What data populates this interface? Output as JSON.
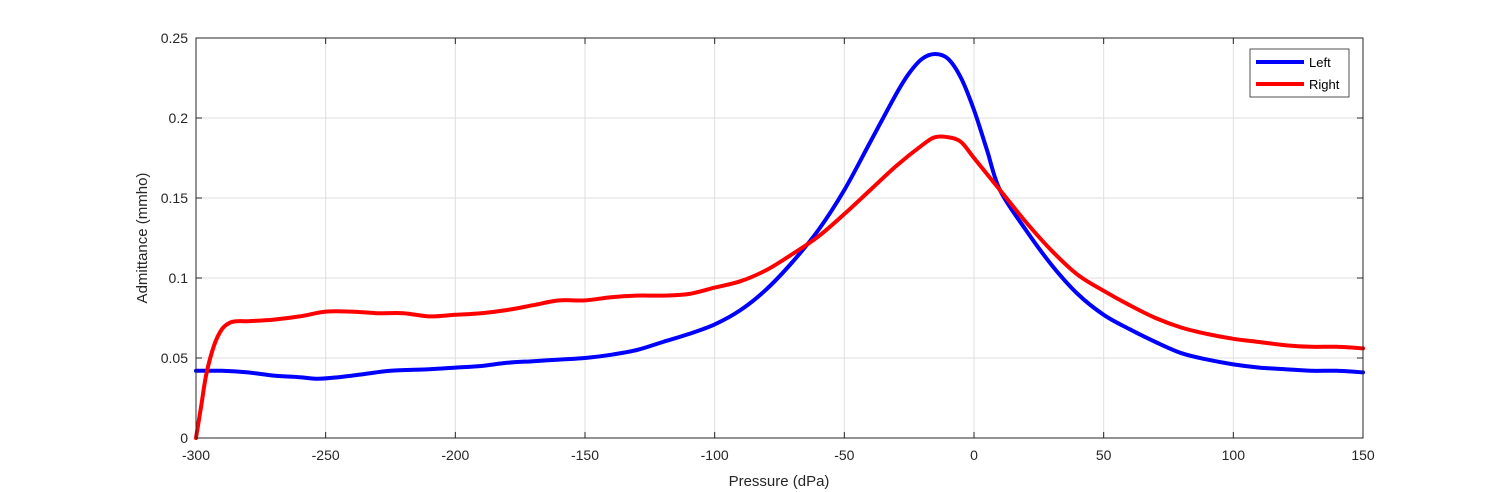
{
  "chart_data": {
    "type": "line",
    "title": "",
    "xlabel": "Pressure (dPa)",
    "ylabel": "Admittance (mmho)",
    "xlim": [
      -300,
      150
    ],
    "ylim": [
      0,
      0.25
    ],
    "xticks": [
      -300,
      -250,
      -200,
      -150,
      -100,
      -50,
      0,
      50,
      100,
      150
    ],
    "yticks": [
      0,
      0.05,
      0.1,
      0.15,
      0.2,
      0.25
    ],
    "xtick_labels": [
      "-300",
      "-250",
      "-200",
      "-150",
      "-100",
      "-50",
      "0",
      "50",
      "100",
      "150"
    ],
    "ytick_labels": [
      "0",
      "0.05",
      "0.1",
      "0.15",
      "0.2",
      "0.25"
    ],
    "grid": true,
    "legend_position": "top-right",
    "series": [
      {
        "name": "Left",
        "color": "#0000ff",
        "x": [
          -300,
          -290,
          -280,
          -270,
          -260,
          -253,
          -245,
          -235,
          -225,
          -210,
          -200,
          -190,
          -180,
          -170,
          -160,
          -150,
          -140,
          -130,
          -120,
          -110,
          -100,
          -90,
          -80,
          -70,
          -60,
          -50,
          -40,
          -30,
          -25,
          -20,
          -15,
          -10,
          -5,
          0,
          5,
          10,
          20,
          30,
          40,
          50,
          60,
          70,
          80,
          90,
          100,
          110,
          120,
          130,
          140,
          150
        ],
        "y": [
          0.042,
          0.042,
          0.041,
          0.039,
          0.038,
          0.037,
          0.038,
          0.04,
          0.042,
          0.043,
          0.044,
          0.045,
          0.047,
          0.048,
          0.049,
          0.05,
          0.052,
          0.055,
          0.06,
          0.065,
          0.071,
          0.08,
          0.093,
          0.11,
          0.13,
          0.155,
          0.185,
          0.215,
          0.228,
          0.237,
          0.24,
          0.237,
          0.225,
          0.205,
          0.18,
          0.155,
          0.13,
          0.108,
          0.09,
          0.077,
          0.068,
          0.06,
          0.053,
          0.049,
          0.046,
          0.044,
          0.043,
          0.042,
          0.042,
          0.041
        ]
      },
      {
        "name": "Right",
        "color": "#ff0000",
        "x": [
          -300,
          -298,
          -296,
          -293,
          -290,
          -287,
          -284,
          -280,
          -270,
          -260,
          -250,
          -240,
          -230,
          -220,
          -210,
          -200,
          -190,
          -180,
          -170,
          -160,
          -150,
          -140,
          -130,
          -120,
          -110,
          -100,
          -90,
          -80,
          -70,
          -60,
          -50,
          -40,
          -30,
          -20,
          -15,
          -10,
          -5,
          0,
          10,
          20,
          30,
          40,
          50,
          60,
          70,
          80,
          90,
          100,
          110,
          120,
          130,
          140,
          150
        ],
        "y": [
          0.0,
          0.02,
          0.04,
          0.058,
          0.068,
          0.072,
          0.073,
          0.073,
          0.074,
          0.076,
          0.079,
          0.079,
          0.078,
          0.078,
          0.076,
          0.077,
          0.078,
          0.08,
          0.083,
          0.086,
          0.086,
          0.088,
          0.089,
          0.089,
          0.09,
          0.094,
          0.098,
          0.105,
          0.115,
          0.126,
          0.14,
          0.155,
          0.17,
          0.183,
          0.188,
          0.188,
          0.185,
          0.175,
          0.155,
          0.135,
          0.117,
          0.102,
          0.092,
          0.083,
          0.075,
          0.069,
          0.065,
          0.062,
          0.06,
          0.058,
          0.057,
          0.057,
          0.056
        ]
      }
    ]
  }
}
